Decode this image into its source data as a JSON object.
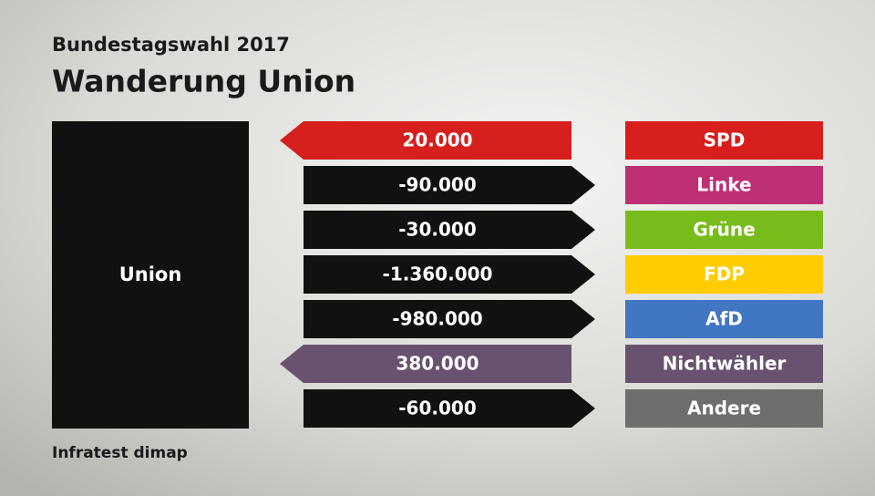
{
  "header": {
    "subtitle": "Bundestagswahl 2017",
    "title": "Wanderung Union"
  },
  "center": {
    "label": "Union"
  },
  "flows": [
    {
      "party": "SPD",
      "value": 20000,
      "label": "20.000",
      "color": "#d71f1d"
    },
    {
      "party": "Linke",
      "value": -90000,
      "label": "-90.000",
      "color": "#be3075"
    },
    {
      "party": "Grüne",
      "value": -30000,
      "label": "-30.000",
      "color": "#78bc1b"
    },
    {
      "party": "FDP",
      "value": -1360000,
      "label": "-1.360.000",
      "color": "#ffcc00"
    },
    {
      "party": "AfD",
      "value": -980000,
      "label": "-980.000",
      "color": "#4176c2"
    },
    {
      "party": "Nichtwähler",
      "value": 380000,
      "label": "380.000",
      "color": "#685270"
    },
    {
      "party": "Andere",
      "value": -60000,
      "label": "-60.000",
      "color": "#6e6e6e"
    }
  ],
  "footer": {
    "source": "Infratest dimap"
  }
}
